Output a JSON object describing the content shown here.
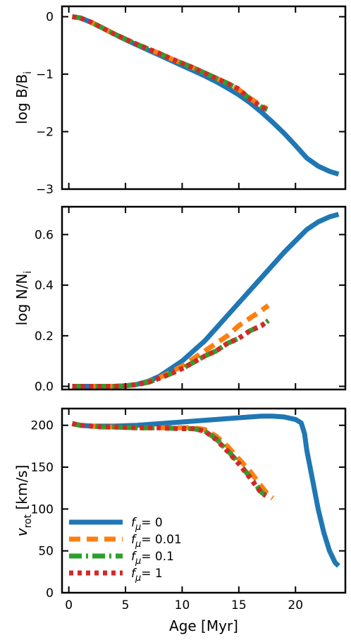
{
  "chart_data": {
    "type": "line",
    "xlabel": "Age [Myr]",
    "xlim": [
      -0.6,
      24.4
    ],
    "xticks": [
      0,
      5,
      10,
      15,
      20
    ],
    "series_styles": [
      {
        "key": "f0",
        "color": "#1f77b4",
        "dash": "solid"
      },
      {
        "key": "f001",
        "color": "#ff7f0e",
        "dash": "dashed"
      },
      {
        "key": "f01",
        "color": "#2ca02c",
        "dash": "dashdot"
      },
      {
        "key": "f1",
        "color": "#d62728",
        "dash": "dotted"
      }
    ],
    "legend": {
      "placement": "lower-left",
      "entries": [
        {
          "key": "f0",
          "label": "= 0"
        },
        {
          "key": "f001",
          "label": "= 0.01"
        },
        {
          "key": "f01",
          "label": "= 0.1"
        },
        {
          "key": "f1",
          "label": "= 1"
        }
      ],
      "symbol": "f",
      "symbol_subscript": "μ"
    },
    "panels": [
      {
        "ylabel": "log B/B",
        "ylabel_subscript": "i",
        "ylim": [
          -3.0,
          0.18
        ],
        "yticks": [
          0,
          -1,
          -2,
          -3
        ],
        "ytick_labels": [
          "0",
          "−1",
          "−2",
          "−3"
        ],
        "series": [
          {
            "key": "f0",
            "x": [
              0.3,
              1,
              2,
              3,
              4,
              5,
              6,
              7,
              8,
              9,
              10,
              11,
              12,
              13,
              14,
              15,
              16,
              17,
              18,
              19,
              20,
              21,
              22,
              23,
              23.8
            ],
            "y": [
              0,
              -0.02,
              -0.1,
              -0.2,
              -0.3,
              -0.4,
              -0.49,
              -0.58,
              -0.67,
              -0.76,
              -0.85,
              -0.94,
              -1.03,
              -1.13,
              -1.24,
              -1.36,
              -1.5,
              -1.66,
              -1.84,
              -2.03,
              -2.24,
              -2.46,
              -2.6,
              -2.69,
              -2.74
            ]
          },
          {
            "key": "f001",
            "x": [
              0.3,
              1,
              2,
              3,
              4,
              5,
              6,
              7,
              8,
              9,
              10,
              11,
              12,
              13,
              14,
              15,
              16,
              17,
              17.5
            ],
            "y": [
              0,
              -0.02,
              -0.1,
              -0.2,
              -0.3,
              -0.39,
              -0.48,
              -0.56,
              -0.64,
              -0.73,
              -0.81,
              -0.89,
              -0.98,
              -1.07,
              -1.16,
              -1.27,
              -1.42,
              -1.55,
              -1.6
            ]
          },
          {
            "key": "f01",
            "x": [
              0.3,
              1,
              2,
              3,
              4,
              5,
              6,
              7,
              8,
              9,
              10,
              11,
              12,
              13,
              14,
              15,
              16,
              17,
              17.5
            ],
            "y": [
              0,
              -0.02,
              -0.1,
              -0.2,
              -0.3,
              -0.39,
              -0.48,
              -0.56,
              -0.64,
              -0.73,
              -0.81,
              -0.89,
              -0.98,
              -1.07,
              -1.16,
              -1.26,
              -1.44,
              -1.57,
              -1.62
            ]
          },
          {
            "key": "f1",
            "x": [
              0.3,
              1,
              2,
              3,
              4,
              5,
              6,
              7,
              8,
              9,
              10,
              11,
              12,
              13,
              14,
              15,
              16,
              17,
              17.5
            ],
            "y": [
              0,
              -0.02,
              -0.1,
              -0.2,
              -0.3,
              -0.39,
              -0.48,
              -0.56,
              -0.64,
              -0.73,
              -0.81,
              -0.89,
              -0.98,
              -1.07,
              -1.16,
              -1.26,
              -1.44,
              -1.57,
              -1.62
            ]
          }
        ]
      },
      {
        "ylabel": "log N/N",
        "ylabel_subscript": "i",
        "ylim": [
          -0.0125,
          0.71
        ],
        "yticks": [
          0.0,
          0.2,
          0.4,
          0.6
        ],
        "ytick_labels": [
          "0.0",
          "0.2",
          "0.4",
          "0.6"
        ],
        "series": [
          {
            "key": "f0",
            "x": [
              0.3,
              2,
              4,
              5,
              6,
              7,
              8,
              9,
              10,
              11,
              12,
              13,
              14,
              15,
              16,
              17,
              18,
              19,
              20,
              21,
              22,
              23,
              23.8
            ],
            "y": [
              0,
              0,
              0,
              0.002,
              0.008,
              0.02,
              0.04,
              0.07,
              0.1,
              0.14,
              0.18,
              0.23,
              0.28,
              0.33,
              0.38,
              0.43,
              0.48,
              0.53,
              0.575,
              0.62,
              0.65,
              0.67,
              0.68
            ]
          },
          {
            "key": "f001",
            "x": [
              0.3,
              2,
              4,
              5,
              6,
              7,
              8,
              9,
              10,
              11,
              12,
              13,
              14,
              15,
              16,
              17,
              17.6
            ],
            "y": [
              0,
              0,
              0,
              0.002,
              0.007,
              0.018,
              0.035,
              0.056,
              0.08,
              0.11,
              0.14,
              0.17,
              0.2,
              0.24,
              0.27,
              0.3,
              0.32
            ]
          },
          {
            "key": "f01",
            "x": [
              0.3,
              2,
              4,
              5,
              6,
              7,
              8,
              9,
              10,
              11,
              12,
              13,
              14,
              15,
              16,
              17,
              17.6
            ],
            "y": [
              0,
              0,
              0,
              0.002,
              0.007,
              0.016,
              0.032,
              0.05,
              0.07,
              0.095,
              0.12,
              0.14,
              0.17,
              0.19,
              0.22,
              0.24,
              0.26
            ]
          },
          {
            "key": "f1",
            "x": [
              0.3,
              2,
              4,
              5,
              6,
              7,
              8,
              9,
              10,
              11,
              12,
              13,
              14,
              15,
              16,
              17,
              17.6
            ],
            "y": [
              0,
              0,
              0,
              0.002,
              0.007,
              0.016,
              0.032,
              0.05,
              0.07,
              0.095,
              0.12,
              0.14,
              0.17,
              0.19,
              0.22,
              0.24,
              0.26
            ]
          }
        ]
      },
      {
        "ylabel": "v",
        "ylabel_subscript": "rot",
        "ylabel_unit": " [km/s]",
        "ylim": [
          0,
          220
        ],
        "yticks": [
          0,
          50,
          100,
          150,
          200
        ],
        "ytick_labels": [
          "0",
          "50",
          "100",
          "150",
          "200"
        ],
        "series": [
          {
            "key": "f0",
            "x": [
              0.3,
              1,
              2,
              3,
              4,
              6,
              8,
              10,
              12,
              14,
              16,
              17,
              18,
              19,
              20,
              20.5,
              20.8,
              21,
              21.5,
              22,
              22.5,
              23,
              23.5,
              23.8
            ],
            "y": [
              202,
              200,
              199,
              199,
              199,
              200,
              202,
              204,
              206,
              208,
              210,
              211,
              211,
              210,
              207,
              203,
              190,
              170,
              135,
              100,
              72,
              50,
              36,
              32
            ]
          },
          {
            "key": "f001",
            "x": [
              0.3,
              1,
              2,
              3,
              4,
              6,
              8,
              10,
              11,
              12,
              13,
              14,
              15,
              16,
              17,
              17.6,
              18
            ],
            "y": [
              202,
              200,
              199,
              198,
              198,
              197,
              197,
              197,
              197,
              195,
              187,
              175,
              160,
              145,
              127,
              117,
              113
            ]
          },
          {
            "key": "f01",
            "x": [
              0.3,
              1,
              2,
              3,
              4,
              6,
              8,
              10,
              11,
              12,
              13,
              14,
              15,
              16,
              17,
              17.4
            ],
            "y": [
              202,
              200,
              199,
              198,
              198,
              197,
              197,
              196,
              196,
              193,
              184,
              170,
              155,
              138,
              120,
              116
            ]
          },
          {
            "key": "f1",
            "x": [
              0.3,
              1,
              2,
              3,
              4,
              6,
              8,
              10,
              11,
              12,
              13,
              14,
              15,
              16,
              17,
              17.4
            ],
            "y": [
              202,
              200,
              199,
              198,
              198,
              197,
              197,
              196,
              196,
              193,
              183,
              169,
              154,
              137,
              119,
              116
            ]
          }
        ]
      }
    ]
  }
}
